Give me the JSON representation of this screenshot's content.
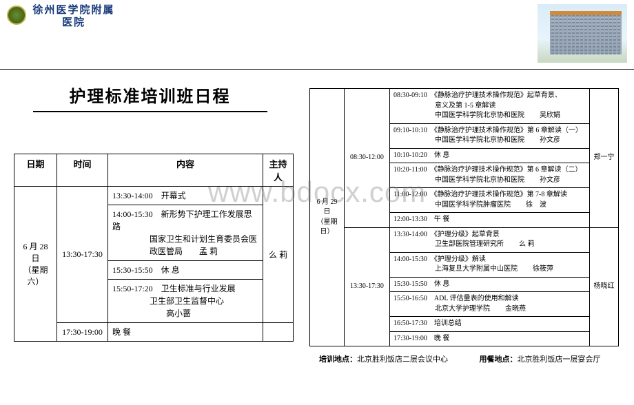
{
  "header": {
    "hospital_name": "徐州医学院附属医院"
  },
  "title": "护理标准培训班日程",
  "watermark": "www.bdocx.com",
  "left_table": {
    "headers": {
      "date": "日期",
      "time": "时间",
      "content": "内容",
      "host": "主持人"
    },
    "date_cell": "6 月 28 日\n（星期六）",
    "period_main": "13:30-17:30",
    "host_main": "么 莉",
    "rows": [
      {
        "line1": "13:30-14:00　开幕式"
      },
      {
        "line1": "14:00-15:30　新形势下护理工作发展思路",
        "inst": "国家卫生和计划生育委员会医政医管局",
        "who": "孟 莉"
      },
      {
        "line1": "15:30-15:50　休 息"
      },
      {
        "line1": "15:50-17:20　卫生标准与行业发展",
        "inst": "卫生部卫生监督中心",
        "who": "高小蔷"
      }
    ],
    "last": {
      "time": "17:30-19:00",
      "content": "晚 餐"
    }
  },
  "right_table": {
    "date_cell": "6 月 29 日\n（星期日）",
    "morning": {
      "period": "08:30-12:00",
      "host": "郑一宁",
      "rows": [
        {
          "line1": "08:30-09:10　《静脉治疗护理技术操作规范》起草背景、",
          "line2": "意义及第 1-5 章解读",
          "inst": "中国医学科学院北京协和医院",
          "who": "吴欣娟"
        },
        {
          "line1": "09:10-10:10　《静脉治疗护理技术操作规范》第 6 章解读（一）",
          "inst": "中国医学科学院北京协和医院",
          "who": "孙文彦"
        },
        {
          "line1": "10:10-10:20　休 息"
        },
        {
          "line1": "10:20-11:00　《静脉治疗护理技术操作规范》第 6 章解读（二）",
          "inst": "中国医学科学院北京协和医院",
          "who": "孙文彦"
        },
        {
          "line1": "11:00-12:00　《静脉治疗护理技术操作规范》第 7-8 章解读",
          "inst": "中国医学科学院肿瘤医院",
          "who": "徐　波"
        },
        {
          "line1": "12:00-13:30　午 餐"
        }
      ]
    },
    "afternoon": {
      "period": "13:30-17:30",
      "host": "杨晓红",
      "rows": [
        {
          "line1": "13:30-14:00　《护理分级》起草背景",
          "inst": "卫生部医院管理研究所",
          "who": "么 莉"
        },
        {
          "line1": "14:00-15:30　《护理分级》解读",
          "inst": "上海复旦大学附属中山医院",
          "who": "徐筱萍"
        },
        {
          "line1": "15:30-15:50　休 息"
        },
        {
          "line1": "15:50-16:50　ADL 评估量表的使用和解读",
          "inst": "北京大学护理学院",
          "who": "金晓燕"
        },
        {
          "line1": "16:50-17:30　培训总结"
        },
        {
          "line1": "17:30-19:00　晚 餐"
        }
      ]
    }
  },
  "footer": {
    "venue_label": "培训地点：",
    "venue": "北京胜利饭店二层会议中心",
    "meal_label": "用餐地点：",
    "meal": "北京胜利饭店一层宴会厅"
  }
}
